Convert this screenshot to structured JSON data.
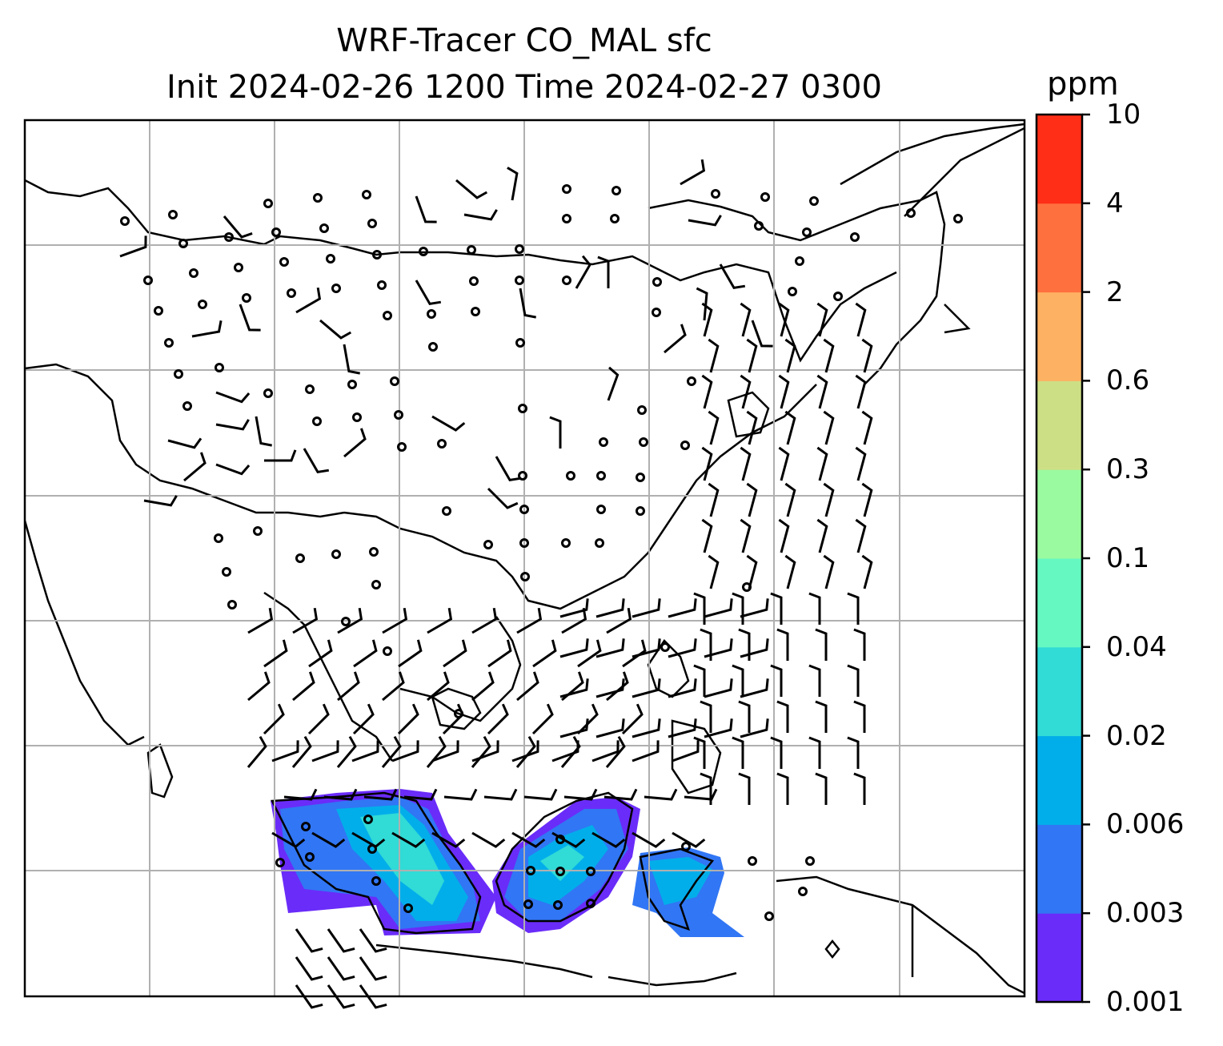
{
  "title": {
    "line1": "WRF-Tracer CO_MAL sfc",
    "line2": "Init 2024-02-26 1200 Time 2024-02-27 0300"
  },
  "colorbar": {
    "unit": "ppm",
    "ticks": [
      "10",
      "4",
      "2",
      "0.6",
      "0.3",
      "0.1",
      "0.04",
      "0.02",
      "0.006",
      "0.003",
      "0.001"
    ],
    "levels": [
      {
        "from": "0.001",
        "to": "0.003",
        "color": "#6a2cf9"
      },
      {
        "from": "0.003",
        "to": "0.006",
        "color": "#3176f4"
      },
      {
        "from": "0.006",
        "to": "0.02",
        "color": "#02aeea"
      },
      {
        "from": "0.02",
        "to": "0.04",
        "color": "#31dbd6"
      },
      {
        "from": "0.04",
        "to": "0.1",
        "color": "#66f8c1"
      },
      {
        "from": "0.1",
        "to": "0.3",
        "color": "#9afa9f"
      },
      {
        "from": "0.3",
        "to": "0.6",
        "color": "#cddf85"
      },
      {
        "from": "0.6",
        "to": "2",
        "color": "#fdb162"
      },
      {
        "from": "2",
        "to": "4",
        "color": "#ff703f"
      },
      {
        "from": "4",
        "to": "10",
        "color": "#fe2e17"
      }
    ]
  },
  "map": {
    "gridlines": true,
    "coastlines": true,
    "gridline_color": "#b0b0b0",
    "wind_symbol": "wind barbs (calm = circle)"
  }
}
